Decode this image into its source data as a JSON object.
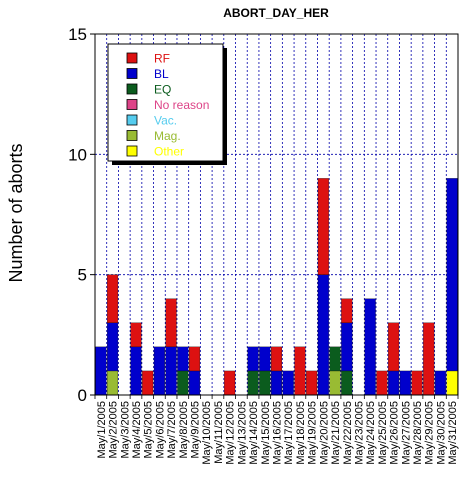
{
  "chart_data": {
    "type": "bar",
    "stacked": true,
    "title": "ABORT_DAY_HER",
    "xlabel": "",
    "ylabel": "Number of aborts",
    "ylim": [
      0,
      15
    ],
    "yticks": [
      0,
      5,
      10,
      15
    ],
    "grid": true,
    "legend_position": "top-left",
    "categories": [
      "May/1/2005",
      "May/2/2005",
      "May/3/2005",
      "May/4/2005",
      "May/5/2005",
      "May/6/2005",
      "May/7/2005",
      "May/8/2005",
      "May/9/2005",
      "May/10/2005",
      "May/11/2005",
      "May/12/2005",
      "May/13/2005",
      "May/14/2005",
      "May/15/2005",
      "May/16/2005",
      "May/17/2005",
      "May/18/2005",
      "May/19/2005",
      "May/20/2005",
      "May/21/2005",
      "May/22/2005",
      "May/23/2005",
      "May/24/2005",
      "May/25/2005",
      "May/26/2005",
      "May/27/2005",
      "May/28/2005",
      "May/29/2005",
      "May/30/2005",
      "May/31/2005"
    ],
    "series": [
      {
        "name": "Other",
        "color": "#ffff00",
        "values": [
          0,
          0,
          0,
          0,
          0,
          0,
          0,
          0,
          0,
          0,
          0,
          0,
          0,
          0,
          0,
          0,
          0,
          0,
          0,
          0,
          0,
          0,
          0,
          0,
          0,
          0,
          0,
          0,
          0,
          0,
          1
        ]
      },
      {
        "name": "Mag.",
        "color": "#99bb33",
        "values": [
          0,
          1,
          0,
          0,
          0,
          0,
          0,
          0,
          0,
          0,
          0,
          0,
          0,
          0,
          0,
          0,
          0,
          0,
          0,
          0,
          1,
          0,
          0,
          0,
          0,
          0,
          0,
          0,
          0,
          0,
          0
        ]
      },
      {
        "name": "Vac.",
        "color": "#55ccee",
        "values": [
          0,
          0,
          0,
          0,
          0,
          0,
          0,
          0,
          0,
          0,
          0,
          0,
          0,
          0,
          0,
          0,
          0,
          0,
          0,
          0,
          0,
          0,
          0,
          0,
          0,
          0,
          0,
          0,
          0,
          0,
          0
        ]
      },
      {
        "name": "No reason",
        "color": "#dd4488",
        "values": [
          0,
          0,
          0,
          0,
          0,
          0,
          0,
          0,
          0,
          0,
          0,
          0,
          0,
          0,
          0,
          0,
          0,
          0,
          0,
          0,
          0,
          0,
          0,
          0,
          0,
          0,
          0,
          0,
          0,
          0,
          0
        ]
      },
      {
        "name": "EQ",
        "color": "#0b5c1e",
        "values": [
          0,
          0,
          0,
          0,
          0,
          0,
          0,
          1,
          0,
          0,
          0,
          0,
          0,
          1,
          1,
          0,
          0,
          0,
          0,
          0,
          1,
          1,
          0,
          0,
          0,
          0,
          0,
          0,
          0,
          0,
          0
        ]
      },
      {
        "name": "BL",
        "color": "#0000cc",
        "values": [
          2,
          2,
          0,
          2,
          0,
          2,
          2,
          1,
          1,
          0,
          0,
          0,
          0,
          1,
          1,
          1,
          1,
          0,
          0,
          5,
          0,
          2,
          0,
          4,
          0,
          1,
          1,
          0,
          0,
          1,
          8
        ]
      },
      {
        "name": "RF",
        "color": "#dd1111",
        "values": [
          0,
          2,
          0,
          1,
          1,
          0,
          2,
          0,
          1,
          0,
          0,
          1,
          0,
          0,
          0,
          1,
          0,
          2,
          1,
          4,
          0,
          1,
          0,
          0,
          1,
          2,
          0,
          1,
          3,
          0,
          0
        ]
      }
    ],
    "legend_order": [
      "RF",
      "BL",
      "EQ",
      "No reason",
      "Vac.",
      "Mag.",
      "Other"
    ]
  }
}
